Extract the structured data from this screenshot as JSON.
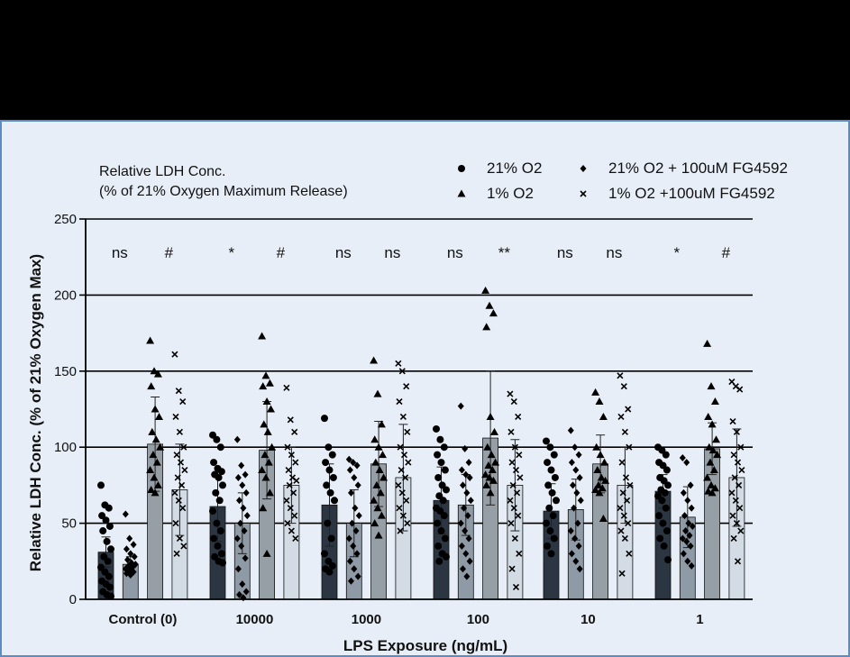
{
  "chart_data": {
    "type": "bar",
    "annotation": [
      "Relative LDH Conc.",
      "(% of 21% Oxygen Maximum Release)"
    ],
    "xlabel": "LPS Exposure (ng/mL)",
    "ylabel": "Relative LDH Conc. (% of 21% Oxygen Max)",
    "ylim": [
      0,
      250
    ],
    "yticks": [
      0,
      50,
      100,
      150,
      200,
      250
    ],
    "grid": true,
    "legend_position": "top-right",
    "categories": [
      "Control (0)",
      "10000",
      "1000",
      "100",
      "10",
      "1"
    ],
    "series": [
      {
        "name": "21% O2",
        "marker": "circle",
        "color": "#2b3642",
        "values": [
          31,
          61,
          62,
          65,
          58,
          71
        ],
        "error": [
          10,
          23,
          27,
          22,
          18,
          11
        ],
        "points": [
          [
            75,
            62,
            60,
            55,
            52,
            48,
            45,
            38,
            33,
            28,
            25,
            21,
            18,
            15,
            12,
            10,
            8,
            5,
            3,
            2
          ],
          [
            108,
            105,
            100,
            90,
            86,
            84,
            82,
            80,
            75,
            70,
            65,
            58,
            50,
            45,
            40,
            35,
            30,
            28,
            25,
            24
          ],
          [
            119,
            100,
            95,
            90,
            85,
            80,
            75,
            70,
            65,
            50,
            40,
            30,
            25,
            22,
            20,
            18
          ],
          [
            112,
            105,
            100,
            95,
            90,
            85,
            80,
            75,
            72,
            68,
            65,
            60,
            58,
            55,
            50,
            45,
            40,
            35,
            30,
            28,
            25
          ],
          [
            104,
            100,
            95,
            90,
            85,
            80,
            75,
            70,
            65,
            60,
            55,
            50,
            45,
            40,
            35,
            30
          ],
          [
            100,
            98,
            95,
            90,
            88,
            85,
            80,
            78,
            75,
            72,
            70,
            68,
            65,
            60,
            55,
            50,
            45,
            40,
            35,
            26
          ]
        ]
      },
      {
        "name": "21% O2 + 100uM FG4592",
        "marker": "diamond",
        "color": "#8e9aa6",
        "values": [
          23,
          50,
          50,
          62,
          59,
          54
        ],
        "error": [
          5,
          20,
          22,
          20,
          20,
          20
        ],
        "points": [
          [
            56,
            40,
            36,
            33,
            30,
            28,
            26,
            24,
            23,
            22,
            21,
            20,
            19,
            18,
            17,
            16
          ],
          [
            105,
            88,
            82,
            80,
            75,
            70,
            65,
            60,
            55,
            50,
            45,
            40,
            35,
            27,
            20,
            10,
            5,
            3,
            1
          ],
          [
            92,
            90,
            88,
            85,
            80,
            75,
            70,
            60,
            55,
            50,
            45,
            40,
            35,
            30,
            25,
            20,
            15,
            12
          ],
          [
            127,
            99,
            90,
            85,
            82,
            80,
            75,
            70,
            65,
            60,
            55,
            50,
            45,
            40,
            35,
            30,
            25,
            20,
            15
          ],
          [
            111,
            100,
            95,
            90,
            85,
            80,
            75,
            70,
            65,
            60,
            50,
            45,
            40,
            35,
            30,
            25,
            20
          ],
          [
            93,
            90,
            75,
            70,
            65,
            60,
            55,
            50,
            48,
            45,
            42,
            40,
            38,
            35,
            30,
            25,
            22
          ]
        ]
      },
      {
        "name": "1% O2",
        "marker": "triangle",
        "color": "#969ea6",
        "values": [
          102,
          98,
          89,
          106,
          89,
          99
        ],
        "error": [
          31,
          32,
          28,
          44,
          19,
          17
        ],
        "points": [
          [
            170,
            150,
            148,
            140,
            125,
            120,
            110,
            105,
            100,
            95,
            90,
            85,
            80,
            75,
            72,
            70
          ],
          [
            173,
            147,
            142,
            140,
            130,
            125,
            115,
            110,
            100,
            95,
            90,
            85,
            80,
            70,
            60,
            30
          ],
          [
            157,
            135,
            115,
            105,
            100,
            95,
            90,
            85,
            80,
            75,
            70,
            65,
            60,
            55,
            50,
            42
          ],
          [
            203,
            193,
            188,
            179,
            120,
            110,
            100,
            95,
            90,
            88,
            85,
            82,
            80,
            78,
            75,
            70
          ],
          [
            136,
            130,
            120,
            100,
            95,
            90,
            85,
            80,
            78,
            75,
            73,
            72,
            70,
            53
          ],
          [
            168,
            140,
            130,
            120,
            115,
            105,
            100,
            98,
            95,
            90,
            85,
            80,
            75,
            73,
            71,
            70
          ]
        ]
      },
      {
        "name": "1% O2 +100uM FG4592",
        "marker": "cross",
        "color": "#d3dce5",
        "values": [
          72,
          75,
          80,
          75,
          75,
          80
        ],
        "error": [
          30,
          25,
          35,
          30,
          25,
          32
        ],
        "points": [
          [
            161,
            137,
            130,
            120,
            110,
            100,
            95,
            90,
            85,
            80,
            75,
            70,
            65,
            60,
            50,
            40,
            35,
            30
          ],
          [
            139,
            118,
            110,
            100,
            95,
            90,
            85,
            80,
            78,
            75,
            70,
            65,
            60,
            55,
            50,
            45,
            40
          ],
          [
            155,
            150,
            140,
            130,
            120,
            110,
            100,
            95,
            90,
            85,
            80,
            75,
            70,
            65,
            60,
            55,
            50,
            45
          ],
          [
            135,
            130,
            120,
            110,
            100,
            95,
            90,
            85,
            80,
            75,
            70,
            65,
            60,
            55,
            50,
            40,
            30,
            20,
            8
          ],
          [
            147,
            140,
            125,
            120,
            110,
            100,
            90,
            80,
            75,
            70,
            65,
            60,
            55,
            50,
            45,
            40,
            30,
            17
          ],
          [
            143,
            140,
            138,
            117,
            110,
            100,
            95,
            90,
            85,
            80,
            75,
            70,
            65,
            60,
            55,
            50,
            45,
            40,
            25
          ]
        ]
      }
    ],
    "significance": [
      [
        "ns",
        "#"
      ],
      [
        "*",
        "#"
      ],
      [
        "ns",
        "ns"
      ],
      [
        "ns",
        "**"
      ],
      [
        "ns",
        "ns"
      ],
      [
        "*",
        "#"
      ]
    ]
  }
}
